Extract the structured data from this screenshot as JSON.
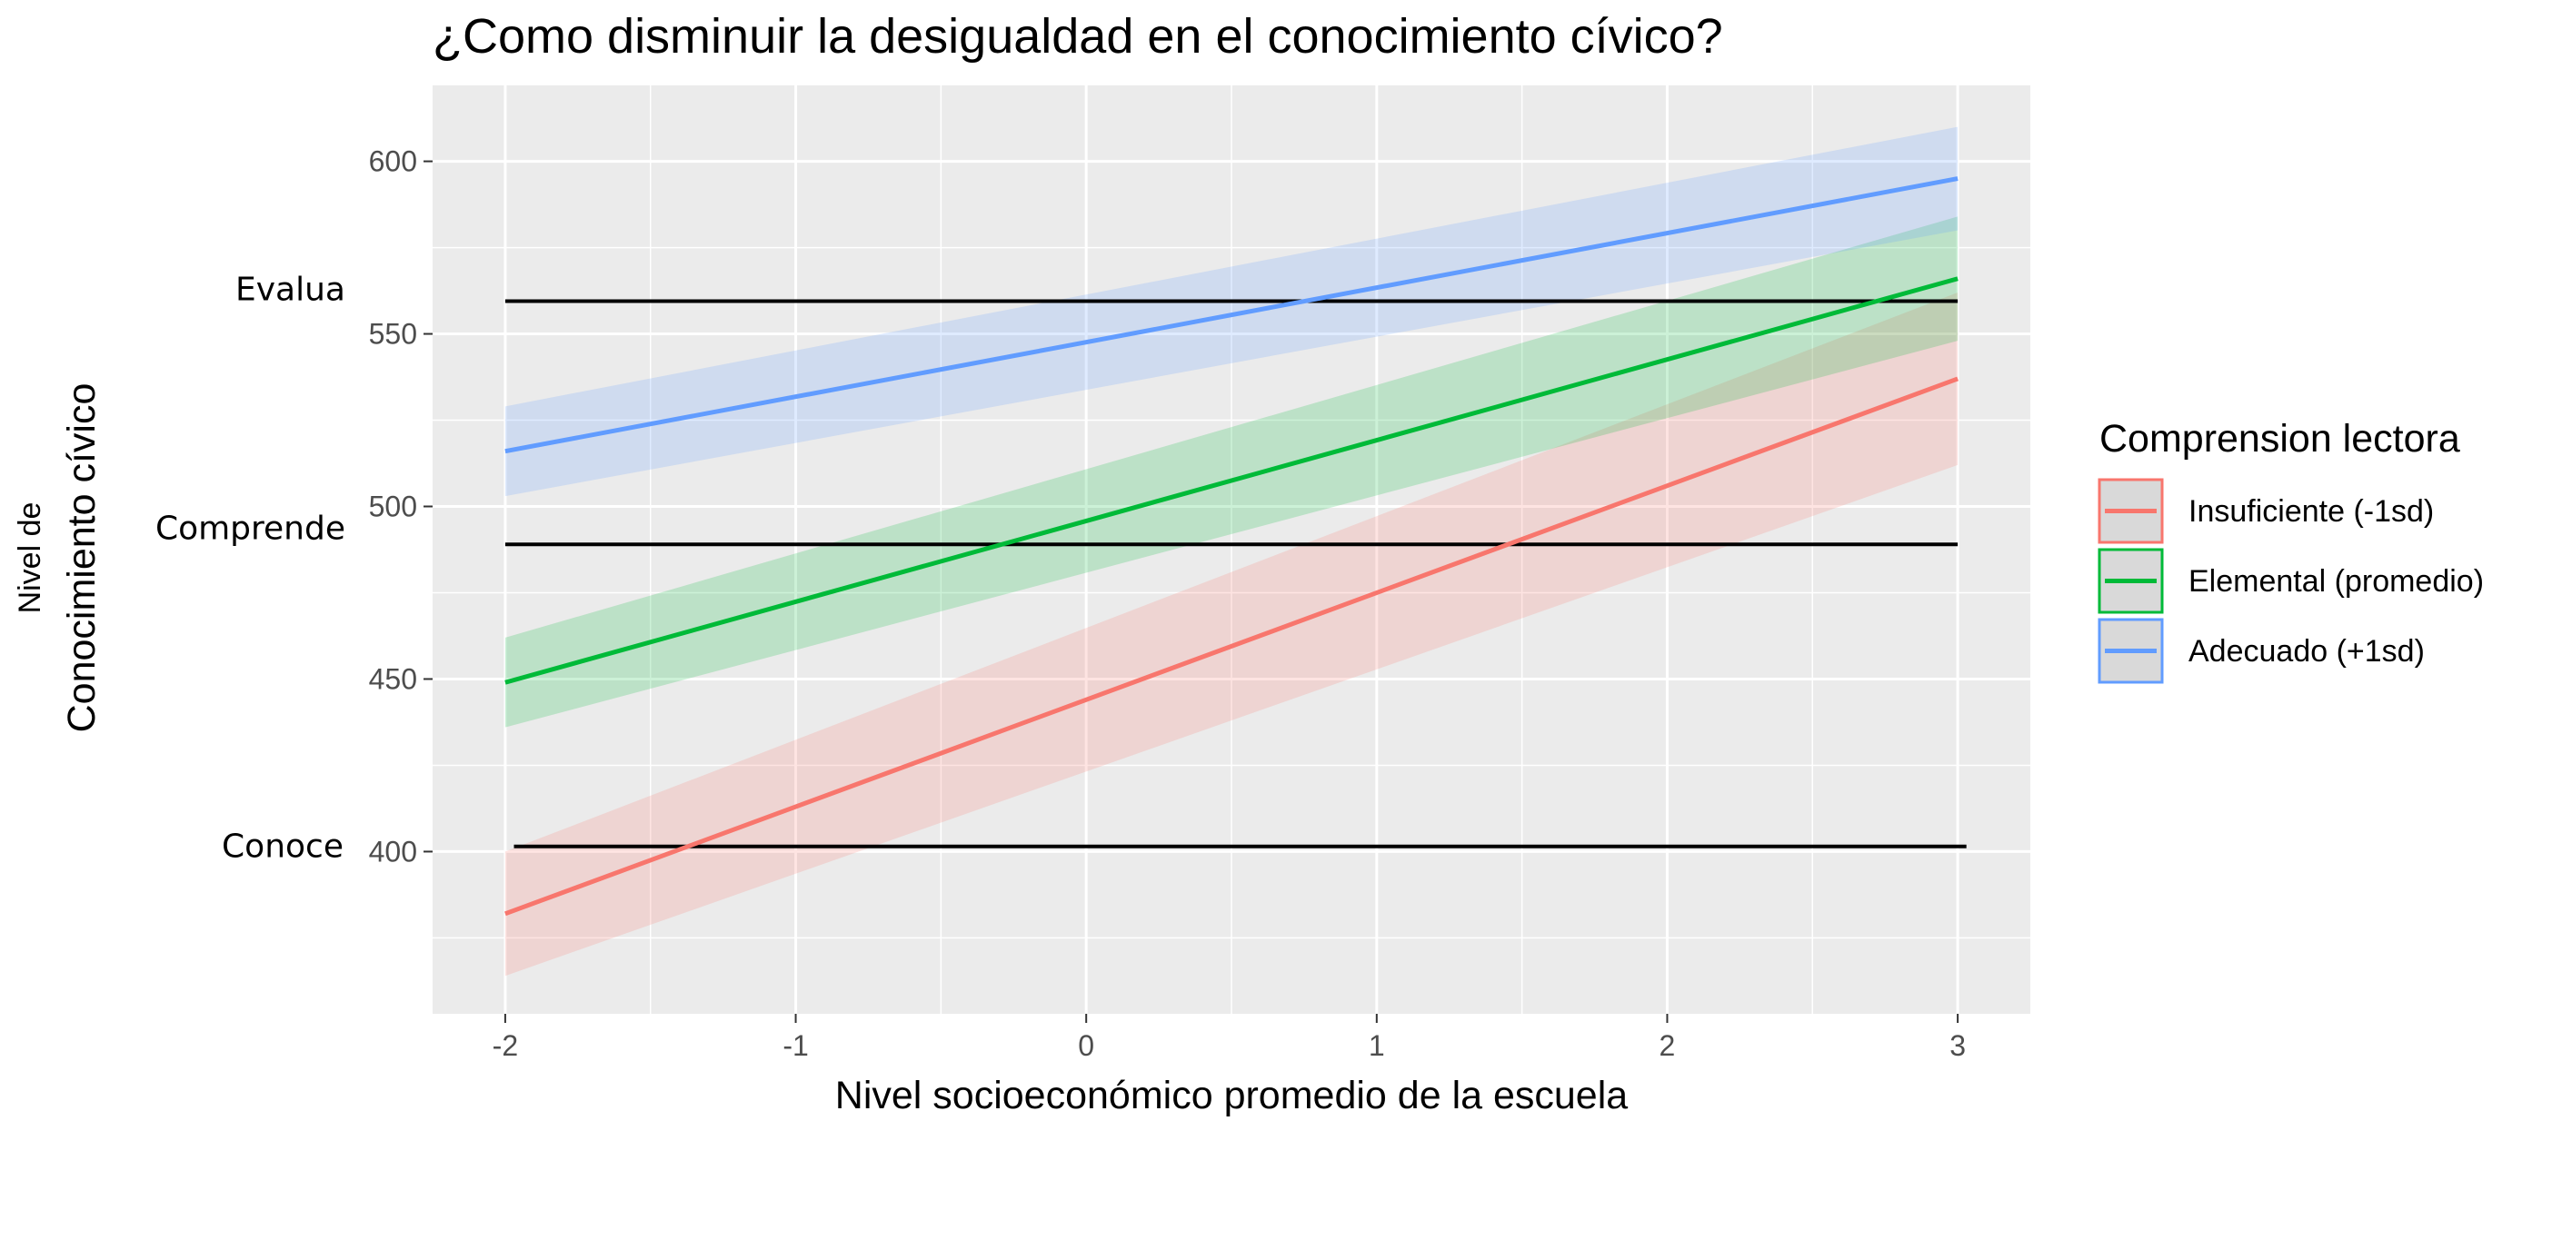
{
  "chart_data": {
    "type": "line",
    "title": "¿Como disminuir la desigualdad en el conocimiento cívico?",
    "xlabel": "Nivel socioeconómico promedio de la escuela",
    "ylabel_line1": "Nivel de",
    "ylabel_line2": "Conocimiento cívico",
    "xlim": [
      -2.25,
      3.25
    ],
    "ylim": [
      353,
      622
    ],
    "x_ticks": [
      -2,
      -1,
      0,
      1,
      2,
      3
    ],
    "y_ticks": [
      400,
      450,
      500,
      550,
      600
    ],
    "grid": true,
    "legend": {
      "title": "Comprension lectora",
      "position": "right"
    },
    "series": [
      {
        "name": "Insuficiente (-1sd)",
        "color": "#F8766D",
        "x": [
          -2,
          3
        ],
        "y": [
          382,
          537
        ],
        "lower": [
          364,
          512
        ],
        "upper": [
          400,
          562
        ]
      },
      {
        "name": "Elemental (promedio)",
        "color": "#00BA38",
        "x": [
          -2,
          3
        ],
        "y": [
          449,
          566
        ],
        "lower": [
          436,
          548
        ],
        "upper": [
          462,
          584
        ]
      },
      {
        "name": "Adecuado (+1sd)",
        "color": "#619CFF",
        "x": [
          -2,
          3
        ],
        "y": [
          516,
          595
        ],
        "lower": [
          503,
          580
        ],
        "upper": [
          529,
          610
        ]
      }
    ],
    "reference_lines": [
      {
        "label": "Evalua",
        "y": 559.5,
        "x": [
          -2,
          3
        ]
      },
      {
        "label": "Comprende",
        "y": 489,
        "x": [
          -2,
          3
        ]
      },
      {
        "label": "Conoce",
        "y": 401.5,
        "x": [
          -1.97,
          3.03
        ]
      }
    ]
  }
}
